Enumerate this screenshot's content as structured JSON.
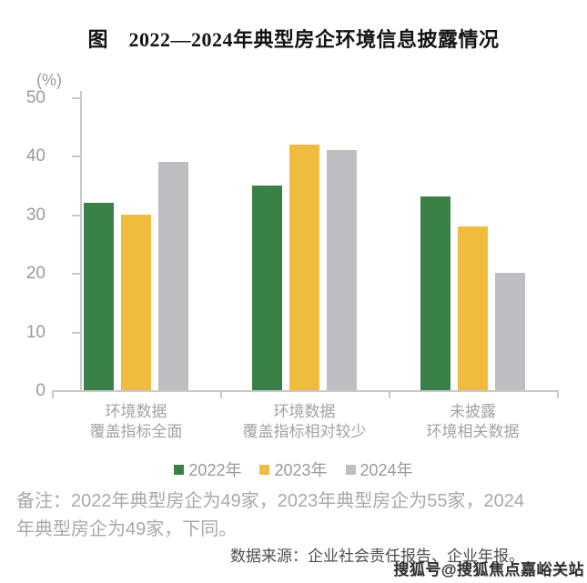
{
  "title": "图　2022—2024年典型房企环境信息披露情况",
  "chart_data": {
    "type": "bar",
    "title": "图　2022—2024年典型房企环境信息披露情况",
    "ylabel": "(%)",
    "xlabel": "",
    "ylim": [
      0,
      50
    ],
    "yticks": [
      0,
      10,
      20,
      30,
      40,
      50
    ],
    "grid": false,
    "legend_position": "bottom",
    "categories": [
      [
        "环境数据",
        "覆盖指标全面"
      ],
      [
        "环境数据",
        "覆盖指标相对较少"
      ],
      [
        "未披露",
        "环境相关数据"
      ]
    ],
    "series": [
      {
        "name": "2022年",
        "color": "#3a8147",
        "values": [
          32,
          35,
          33
        ]
      },
      {
        "name": "2023年",
        "color": "#f0bc3e",
        "values": [
          30,
          42,
          28
        ]
      },
      {
        "name": "2024年",
        "color": "#bdbdc2",
        "values": [
          39,
          41,
          20
        ]
      }
    ]
  },
  "note": {
    "line1": "备注：2022年典型房企为49家，2023年典型房企为55家，2024",
    "line2": "年典型房企为49家，下同。"
  },
  "source": "数据来源：企业社会责任报告、企业年报。",
  "watermark": "搜狐号@搜狐焦点嘉峪关站"
}
